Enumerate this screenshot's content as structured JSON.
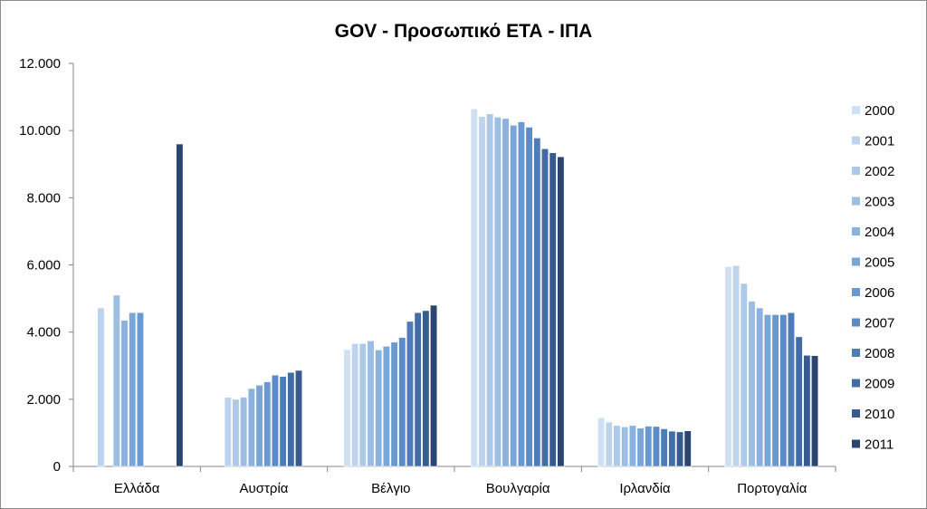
{
  "chart_data": {
    "type": "bar",
    "title": "GOV - Προσωπικό ΕΤΑ - ΙΠΑ",
    "xlabel": "",
    "ylabel": "",
    "ylim": [
      0,
      12000
    ],
    "yticks": [
      0,
      2000,
      4000,
      6000,
      8000,
      10000,
      12000
    ],
    "ytick_labels": [
      "0",
      "2.000",
      "4.000",
      "6.000",
      "8.000",
      "10.000",
      "12.000"
    ],
    "grid": false,
    "legend_position": "right",
    "categories": [
      "Ελλάδα",
      "Αυστρία",
      "Βέλγιο",
      "Βουλγαρία",
      "Ιρλανδία",
      "Πορτογαλία"
    ],
    "series": [
      {
        "name": "2000",
        "color": "#cfe0f3",
        "values": [
          null,
          null,
          3480,
          10650,
          1450,
          5950
        ]
      },
      {
        "name": "2001",
        "color": "#bed4ee",
        "values": [
          4720,
          2060,
          3660,
          10420,
          1320,
          5980
        ]
      },
      {
        "name": "2002",
        "color": "#adc9e9",
        "values": [
          null,
          2000,
          3660,
          10500,
          1220,
          5450
        ]
      },
      {
        "name": "2003",
        "color": "#9cbde4",
        "values": [
          5100,
          2060,
          3740,
          10400,
          1180,
          4920
        ]
      },
      {
        "name": "2004",
        "color": "#8bb1df",
        "values": [
          4350,
          2320,
          3470,
          10360,
          1220,
          4720
        ]
      },
      {
        "name": "2005",
        "color": "#7aa5d9",
        "values": [
          4580,
          2420,
          3580,
          10160,
          1140,
          4520
        ]
      },
      {
        "name": "2006",
        "color": "#6a99d2",
        "values": [
          4580,
          2520,
          3700,
          10260,
          1200,
          4520
        ]
      },
      {
        "name": "2007",
        "color": "#5b8bc8",
        "values": [
          null,
          2720,
          3840,
          10100,
          1190,
          4520
        ]
      },
      {
        "name": "2008",
        "color": "#4e7cb8",
        "values": [
          null,
          2680,
          4320,
          9780,
          1120,
          4580
        ]
      },
      {
        "name": "2009",
        "color": "#426ca6",
        "values": [
          null,
          2800,
          4580,
          9460,
          1050,
          3860
        ]
      },
      {
        "name": "2010",
        "color": "#375b8f",
        "values": [
          null,
          2860,
          4640,
          9340,
          1030,
          3310
        ]
      },
      {
        "name": "2011",
        "color": "#2a4670",
        "values": [
          9600,
          null,
          4800,
          9220,
          1060,
          3300
        ]
      }
    ]
  }
}
